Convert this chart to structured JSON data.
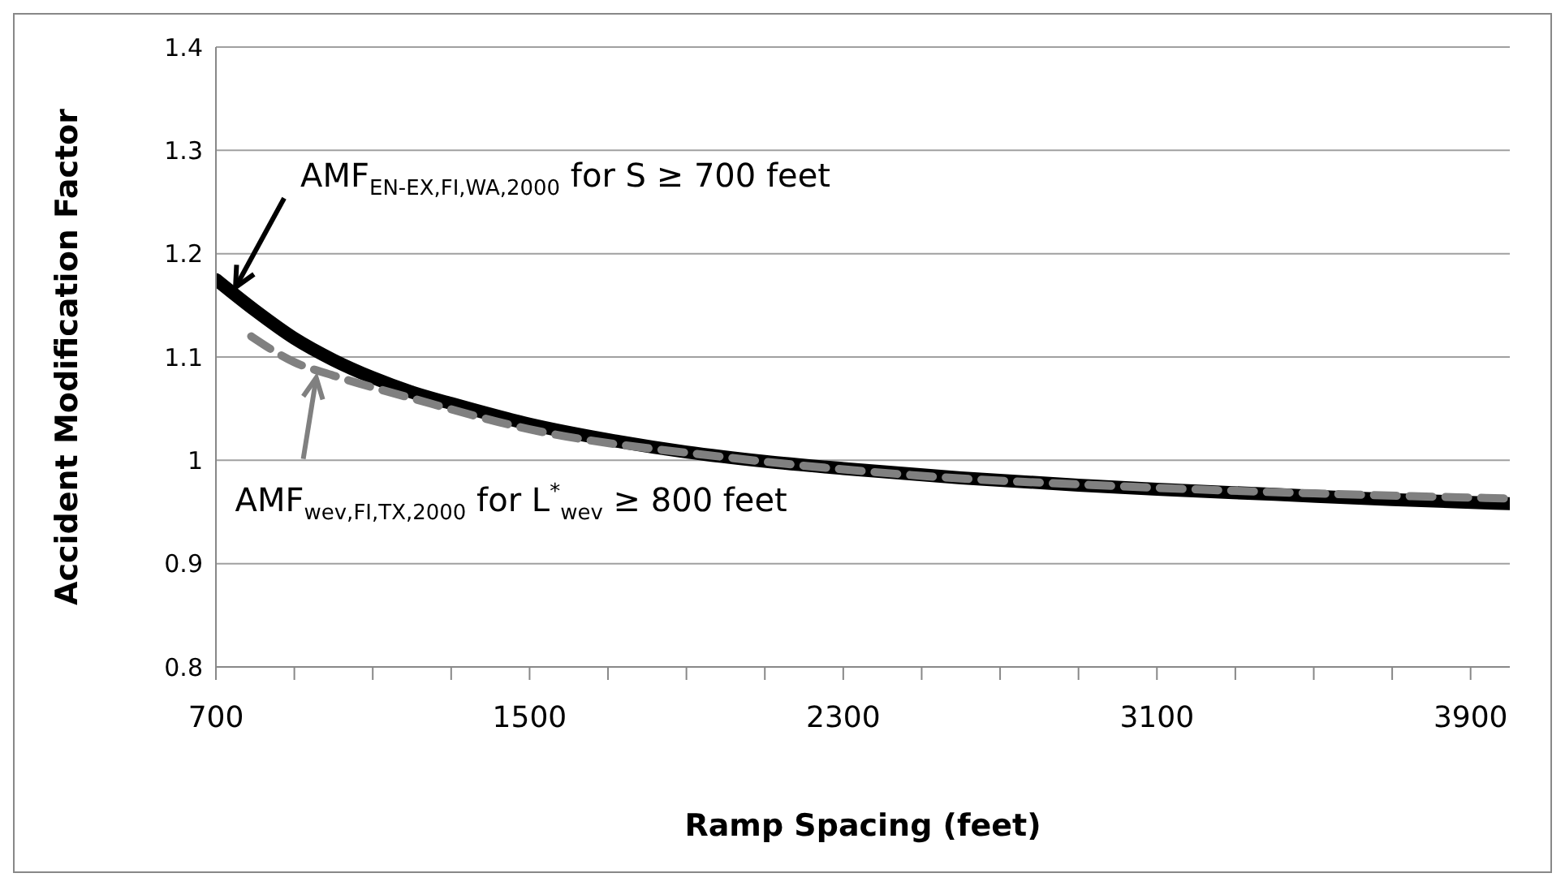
{
  "chart_data": {
    "type": "line",
    "xlabel": "Ramp Spacing (feet)",
    "ylabel": "Accident Modification Factor",
    "xlim": [
      700,
      4000
    ],
    "ylim": [
      0.8,
      1.4
    ],
    "xticks": [
      700,
      {
        "value": 900,
        "label": null
      },
      {
        "value": 1100,
        "label": null
      },
      {
        "value": 1300,
        "label": null
      },
      1500,
      {
        "value": 1700,
        "label": null
      },
      {
        "value": 1900,
        "label": null
      },
      {
        "value": 2100,
        "label": null
      },
      2300,
      {
        "value": 2500,
        "label": null
      },
      {
        "value": 2700,
        "label": null
      },
      {
        "value": 2900,
        "label": null
      },
      3100,
      {
        "value": 3300,
        "label": null
      },
      {
        "value": 3500,
        "label": null
      },
      {
        "value": 3700,
        "label": null
      },
      3900
    ],
    "yticks": [
      0.8,
      0.9,
      1,
      1.1,
      1.2,
      1.3,
      1.4
    ],
    "grid": "y",
    "marker": "none",
    "series": [
      {
        "color": "#000000",
        "line_style": "solid",
        "x": [
          700,
          800,
          900,
          1000,
          1100,
          1200,
          1300,
          1500,
          1700,
          1900,
          2100,
          2300,
          2600,
          2900,
          3100,
          3400,
          3700,
          4000
        ],
        "values": [
          1.175,
          1.145,
          1.118,
          1.097,
          1.08,
          1.066,
          1.055,
          1.035,
          1.02,
          1.008,
          0.999,
          0.992,
          0.983,
          0.976,
          0.972,
          0.967,
          0.962,
          0.958
        ]
      },
      {
        "color": "#808080",
        "line_style": "dashed",
        "x": [
          790,
          900,
          1000,
          1200,
          1500,
          2000,
          2500,
          3000,
          3500,
          4000
        ],
        "values": [
          1.12,
          1.095,
          1.082,
          1.06,
          1.03,
          1.003,
          0.985,
          0.975,
          0.968,
          0.963
        ]
      }
    ],
    "annotations": [
      {
        "text": "AMF$_{EN-EX,FI,WA,2000}$ for S ≥ 700 feet",
        "x": 754,
        "y": 1.167
      },
      {
        "text": "AMF$_{wev,FI,TX,2000}$ for L$^{*}$$_{wev}$ ≥ 800 feet",
        "x": 960,
        "y": 1.08
      }
    ]
  }
}
